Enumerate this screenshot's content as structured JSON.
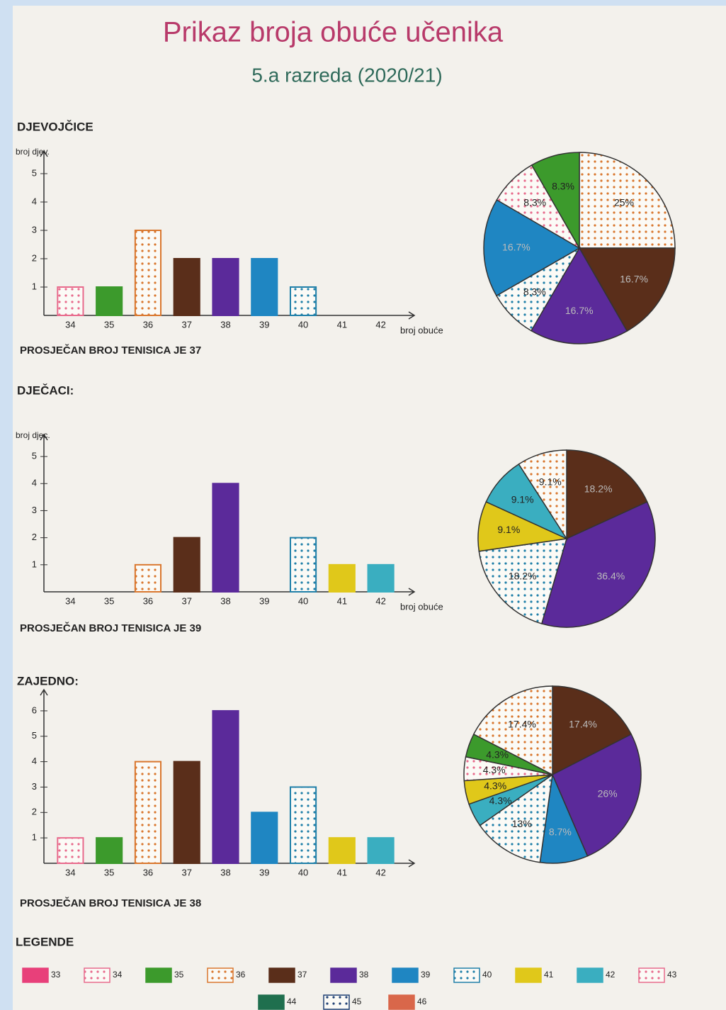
{
  "header": {
    "title": "Prikaz broja obuće učenika",
    "subtitle": "5.a razreda (2020/21)"
  },
  "chart_data": [
    {
      "type": "bar",
      "title": "DJEVOJČICE",
      "ylabel": "broj djev.",
      "xlabel": "broj obuće",
      "categories": [
        "34",
        "35",
        "36",
        "37",
        "38",
        "39",
        "40",
        "41",
        "42"
      ],
      "values": [
        1,
        1,
        3,
        2,
        2,
        2,
        1,
        0,
        0
      ],
      "ylim": [
        0,
        5.5
      ],
      "yticks": [
        1,
        2,
        3,
        4,
        5
      ],
      "note": "PROSJEČAN BROJ TENISICA JE 37"
    },
    {
      "type": "pie",
      "categories": [
        "36",
        "37",
        "38",
        "40",
        "39",
        "34",
        "35"
      ],
      "values": [
        25,
        16.7,
        16.7,
        8.3,
        16.7,
        8.3,
        8.3
      ],
      "value_labels": [
        "25%",
        "16.7%",
        "16.7%",
        "8.3%",
        "16.7%",
        "8.3%",
        "8.3%"
      ]
    },
    {
      "type": "bar",
      "title": "DJEČACI:",
      "ylabel": "broj djec.",
      "xlabel": "broj obuće",
      "categories": [
        "34",
        "35",
        "36",
        "37",
        "38",
        "39",
        "40",
        "41",
        "42"
      ],
      "values": [
        0,
        0,
        1,
        2,
        4,
        0,
        2,
        1,
        1
      ],
      "ylim": [
        0,
        5.5
      ],
      "yticks": [
        1,
        2,
        3,
        4,
        5
      ],
      "note": "PROSJEČAN BROJ TENISICA JE 39"
    },
    {
      "type": "pie",
      "categories": [
        "37",
        "38",
        "40",
        "41",
        "42",
        "36"
      ],
      "values": [
        18.2,
        36.4,
        18.2,
        9.1,
        9.1,
        9.1
      ],
      "value_labels": [
        "18.2%",
        "36.4%",
        "18.2%",
        "9.1%",
        "9.1%",
        "9.1%"
      ]
    },
    {
      "type": "bar",
      "title": "ZAJEDNO:",
      "categories": [
        "34",
        "35",
        "36",
        "37",
        "38",
        "39",
        "40",
        "41",
        "42"
      ],
      "values": [
        1,
        1,
        4,
        4,
        6,
        2,
        3,
        1,
        1
      ],
      "ylim": [
        0,
        6.5
      ],
      "yticks": [
        1,
        2,
        3,
        4,
        5,
        6
      ],
      "note": "PROSJEČAN BROJ TENISICA JE 38"
    },
    {
      "type": "pie",
      "categories": [
        "37",
        "38",
        "39",
        "40",
        "42",
        "41",
        "34",
        "35",
        "36"
      ],
      "values": [
        17.4,
        26,
        8.7,
        13,
        4.3,
        4.3,
        4.3,
        4.3,
        17.4
      ],
      "value_labels": [
        "17.4%",
        "26%",
        "8.7%",
        "13%",
        "4.3%",
        "4.3%",
        "4.3%",
        "4.3%",
        "17.4%"
      ]
    }
  ],
  "legend": {
    "title": "LEGENDE",
    "items": [
      {
        "label": "33",
        "color": "#e8407a"
      },
      {
        "label": "34",
        "color": "#e86a8c",
        "dotted": true
      },
      {
        "label": "35",
        "color": "#3c9a2c"
      },
      {
        "label": "36",
        "color": "#d9772e",
        "dotted": true
      },
      {
        "label": "37",
        "color": "#5a2e1a"
      },
      {
        "label": "38",
        "color": "#5b2a9a"
      },
      {
        "label": "39",
        "color": "#1f86c2"
      },
      {
        "label": "40",
        "color": "#1f7fa8",
        "dotted": true
      },
      {
        "label": "41",
        "color": "#e0c81a"
      },
      {
        "label": "42",
        "color": "#3aaec0"
      },
      {
        "label": "43",
        "color": "#e86a8c",
        "dotted": true
      },
      {
        "label": "44",
        "color": "#1f6f4e"
      },
      {
        "label": "45",
        "color": "#1e3f73",
        "dotted": true
      },
      {
        "label": "46",
        "color": "#d9674a"
      }
    ]
  }
}
